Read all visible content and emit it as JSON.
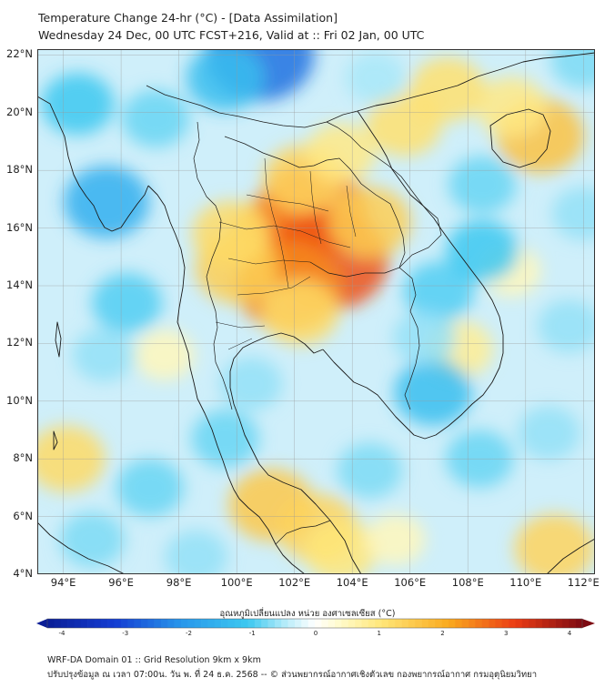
{
  "header": {
    "title_line1": "Temperature Change 24-hr (°C) - [Data Assimilation]",
    "title_line2": "Wednesday 24 Dec, 00 UTC FCST+216, Valid at :: Fri 02 Jan, 00 UTC"
  },
  "map": {
    "lat_labels": [
      "22°N",
      "20°N",
      "18°N",
      "16°N",
      "14°N",
      "12°N",
      "10°N",
      "8°N",
      "6°N",
      "4°N"
    ],
    "lat_values": [
      22,
      20,
      18,
      16,
      14,
      12,
      10,
      8,
      6,
      4
    ],
    "lon_labels": [
      "94°E",
      "96°E",
      "98°E",
      "100°E",
      "102°E",
      "104°E",
      "106°E",
      "108°E",
      "110°E",
      "112°E"
    ],
    "lon_values": [
      94,
      96,
      98,
      100,
      102,
      104,
      106,
      108,
      110,
      112
    ],
    "extent": {
      "lon_min": 93.1,
      "lon_max": 112.4,
      "lat_min": 4.0,
      "lat_max": 22.2
    },
    "anomalies": [
      {
        "lon": 101.5,
        "lat": 15.8,
        "value": 1.9
      },
      {
        "lon": 102.6,
        "lat": 16.6,
        "value": 2.5
      },
      {
        "lon": 103.2,
        "lat": 14.9,
        "value": 2.8
      },
      {
        "lon": 101.8,
        "lat": 14.0,
        "value": 2.3
      },
      {
        "lon": 100.0,
        "lat": 14.6,
        "value": 1.4
      },
      {
        "lon": 99.8,
        "lat": 15.8,
        "value": 1.2
      },
      {
        "lon": 102.2,
        "lat": 13.1,
        "value": 1.2
      },
      {
        "lon": 104.6,
        "lat": 16.2,
        "value": 1.4
      },
      {
        "lon": 102.3,
        "lat": 17.7,
        "value": 1.3
      },
      {
        "lon": 103.6,
        "lat": 18.6,
        "value": 0.9
      },
      {
        "lon": 110.5,
        "lat": 19.2,
        "value": 1.6
      },
      {
        "lon": 109.5,
        "lat": 20.2,
        "value": 0.9
      },
      {
        "lon": 105.8,
        "lat": 19.6,
        "value": 1.1
      },
      {
        "lon": 107.3,
        "lat": 20.8,
        "value": 1.1
      },
      {
        "lon": 107.7,
        "lat": 11.8,
        "value": 0.8
      },
      {
        "lon": 109.5,
        "lat": 14.5,
        "value": 0.5
      },
      {
        "lon": 101.2,
        "lat": 6.4,
        "value": 1.5
      },
      {
        "lon": 102.8,
        "lat": 5.6,
        "value": 1.3
      },
      {
        "lon": 103.6,
        "lat": 4.8,
        "value": 1.0
      },
      {
        "lon": 111.0,
        "lat": 4.9,
        "value": 1.3
      },
      {
        "lon": 94.1,
        "lat": 8.0,
        "value": 1.2
      },
      {
        "lon": 97.5,
        "lat": 11.6,
        "value": 0.5
      },
      {
        "lon": 105.5,
        "lat": 5.2,
        "value": 0.5
      },
      {
        "lon": 100.8,
        "lat": 22.0,
        "value": -2.4
      },
      {
        "lon": 99.6,
        "lat": 21.2,
        "value": -1.2
      },
      {
        "lon": 95.5,
        "lat": 16.9,
        "value": -1.5
      },
      {
        "lon": 94.5,
        "lat": 20.3,
        "value": -1.0
      },
      {
        "lon": 97.2,
        "lat": 19.8,
        "value": -0.8
      },
      {
        "lon": 106.8,
        "lat": 10.3,
        "value": -1.2
      },
      {
        "lon": 107.0,
        "lat": 13.8,
        "value": -0.9
      },
      {
        "lon": 108.5,
        "lat": 15.2,
        "value": -1.0
      },
      {
        "lon": 108.5,
        "lat": 17.5,
        "value": -0.8
      },
      {
        "lon": 96.2,
        "lat": 13.4,
        "value": -0.9
      },
      {
        "lon": 97.0,
        "lat": 7.0,
        "value": -0.8
      },
      {
        "lon": 99.6,
        "lat": 8.7,
        "value": -0.8
      },
      {
        "lon": 104.6,
        "lat": 7.6,
        "value": -0.7
      },
      {
        "lon": 108.4,
        "lat": 8.0,
        "value": -0.8
      },
      {
        "lon": 111.5,
        "lat": 12.6,
        "value": -0.6
      },
      {
        "lon": 112.0,
        "lat": 16.5,
        "value": -0.6
      },
      {
        "lon": 110.8,
        "lat": 8.9,
        "value": -0.6
      },
      {
        "lon": 95.4,
        "lat": 11.6,
        "value": -0.6
      },
      {
        "lon": 95.0,
        "lat": 5.2,
        "value": -0.7
      },
      {
        "lon": 98.6,
        "lat": 4.6,
        "value": -0.6
      },
      {
        "lon": 100.5,
        "lat": 10.6,
        "value": -0.6
      },
      {
        "lon": 104.8,
        "lat": 21.2,
        "value": -0.5
      },
      {
        "lon": 112.0,
        "lat": 21.8,
        "value": -0.7
      },
      {
        "lon": 106.5,
        "lat": 12.2,
        "value": -0.6
      }
    ]
  },
  "colorbar": {
    "label": "อุณหภูมิเปลี่ยนแปลง หน่วย องศาเซลเซียส (°C)",
    "min": -4,
    "max": 4,
    "tick_labels": [
      "-4",
      "-3",
      "-2",
      "-1",
      "0",
      "1",
      "2",
      "3",
      "4"
    ],
    "tick_values": [
      -4,
      -3,
      -2,
      -1,
      0,
      1,
      2,
      3,
      4
    ],
    "colors": {
      "low_end": "#0a1e96",
      "zero": "#ffffff",
      "high_end": "#7d0a12"
    }
  },
  "footer": {
    "line1": "WRF-DA Domain 01 :: Grid Resolution 9km x 9km",
    "line2": "ปรับปรุงข้อมูล ณ เวลา 07:00น. วัน พ. ที่ 24 ธ.ค. 2568 -- © ส่วนพยากรณ์อากาศเชิงตัวเลข กองพยากรณ์อากาศ กรมอุตุนิยมวิทยา"
  }
}
